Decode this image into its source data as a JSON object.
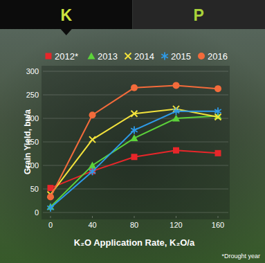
{
  "tabs": [
    "K",
    "P"
  ],
  "chart_data": {
    "type": "line",
    "x_label": "K₂O Application Rate, K₂O/a",
    "y_label": "Grain Yield, bu/a",
    "annotations": [
      "*Drought year"
    ],
    "x": [
      0,
      40,
      80,
      120,
      160
    ],
    "xlim": [
      0,
      160
    ],
    "xticks": [
      0,
      40,
      80,
      120,
      160
    ],
    "ylim": [
      0,
      300
    ],
    "yticks": [
      0,
      50,
      100,
      150,
      200,
      250,
      300
    ],
    "grid": true,
    "legend": "top",
    "series": [
      {
        "name": "2012*",
        "color": "#e8262a",
        "marker": "square",
        "line_style": "solid",
        "values": [
          52,
          88,
          118,
          132,
          126
        ]
      },
      {
        "name": "2013",
        "color": "#5cd23a",
        "marker": "triangle",
        "line_style": "solid",
        "values": [
          12,
          100,
          158,
          200,
          205
        ]
      },
      {
        "name": "2014",
        "color": "#f2e23c",
        "marker": "x",
        "line_style": "solid",
        "values": [
          38,
          155,
          210,
          220,
          203
        ]
      },
      {
        "name": "2015",
        "color": "#2e9ae8",
        "marker": "asterisk",
        "line_style": "solid",
        "values": [
          10,
          87,
          175,
          215,
          215
        ]
      },
      {
        "name": "2016",
        "color": "#f36b3b",
        "marker": "circle",
        "line_style": "solid",
        "values": [
          33,
          207,
          265,
          270,
          263
        ]
      }
    ]
  }
}
